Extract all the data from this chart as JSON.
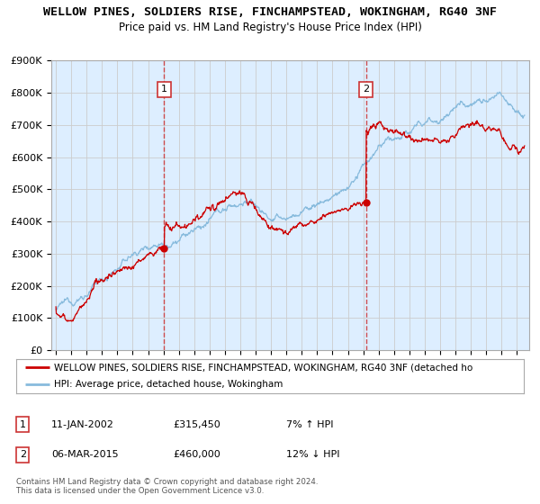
{
  "title": "WELLOW PINES, SOLDIERS RISE, FINCHAMPSTEAD, WOKINGHAM, RG40 3NF",
  "subtitle": "Price paid vs. HM Land Registry's House Price Index (HPI)",
  "ylim": [
    0,
    900000
  ],
  "yticks": [
    0,
    100000,
    200000,
    300000,
    400000,
    500000,
    600000,
    700000,
    800000,
    900000
  ],
  "xlim_start": 1994.7,
  "xlim_end": 2025.8,
  "marker1_x": 2002.03,
  "marker1_y": 315450,
  "marker2_x": 2015.17,
  "marker2_y": 460000,
  "vline1_x": 2002.03,
  "vline2_x": 2015.17,
  "red_line_color": "#cc0000",
  "blue_line_color": "#88bbdd",
  "bg_fill_color": "#ddeeff",
  "grid_color": "#cccccc",
  "vline_color": "#cc3333",
  "marker_color": "#cc0000",
  "annot_box_color": "#cc3333",
  "legend_red_label": "WELLOW PINES, SOLDIERS RISE, FINCHAMPSTEAD, WOKINGHAM, RG40 3NF (detached ho",
  "legend_blue_label": "HPI: Average price, detached house, Wokingham",
  "table_row1": [
    "1",
    "11-JAN-2002",
    "£315,450",
    "7% ↑ HPI"
  ],
  "table_row2": [
    "2",
    "06-MAR-2015",
    "£460,000",
    "12% ↓ HPI"
  ],
  "footer": "Contains HM Land Registry data © Crown copyright and database right 2024.\nThis data is licensed under the Open Government Licence v3.0.",
  "title_fontsize": 9.5,
  "subtitle_fontsize": 8.5
}
